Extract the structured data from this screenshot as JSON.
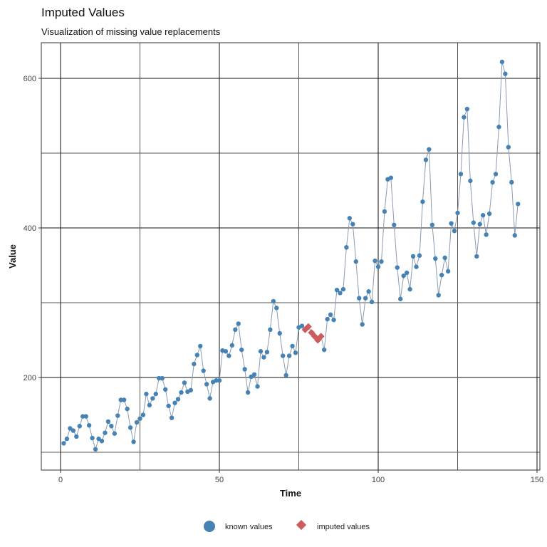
{
  "title": "Imputed Values",
  "subtitle": "Visualization of missing value replacements",
  "legend": {
    "known_label": "known values",
    "imputed_label": "imputed values"
  },
  "colors": {
    "known": "#4682B4",
    "imputed": "#CD5C5C",
    "line": "#8a9bb0"
  },
  "chart_data": {
    "type": "line",
    "title": "Imputed Values",
    "subtitle": "Visualization of missing value replacements",
    "xlabel": "Time",
    "ylabel": "Value",
    "xlim": [
      -6,
      151
    ],
    "ylim": [
      76,
      648
    ],
    "xticks": [
      0,
      50,
      100,
      150
    ],
    "yticks": [
      200,
      400,
      600
    ],
    "grid": true,
    "legend_position": "bottom",
    "series": [
      {
        "name": "known values",
        "marker": "circle",
        "x": [
          1,
          2,
          3,
          4,
          5,
          6,
          7,
          8,
          9,
          10,
          11,
          12,
          13,
          14,
          15,
          16,
          17,
          18,
          19,
          20,
          21,
          22,
          23,
          24,
          25,
          26,
          27,
          28,
          29,
          30,
          31,
          32,
          33,
          34,
          35,
          36,
          37,
          38,
          39,
          40,
          41,
          42,
          43,
          44,
          45,
          46,
          47,
          48,
          49,
          50,
          51,
          52,
          53,
          54,
          55,
          56,
          57,
          58,
          59,
          60,
          61,
          62,
          63,
          64,
          65,
          66,
          67,
          68,
          69,
          70,
          71,
          72,
          73,
          74,
          75,
          76,
          83,
          84,
          85,
          86,
          87,
          88,
          89,
          90,
          91,
          92,
          93,
          94,
          95,
          96,
          97,
          98,
          99,
          100,
          101,
          102,
          103,
          104,
          105,
          106,
          107,
          108,
          109,
          110,
          111,
          112,
          113,
          114,
          115,
          116,
          117,
          118,
          119,
          120,
          121,
          122,
          123,
          124,
          125,
          126,
          127,
          128,
          129,
          130,
          131,
          132,
          133,
          134,
          135,
          136,
          137,
          138,
          139,
          140,
          141,
          142,
          143,
          144
        ],
        "values": [
          112,
          118,
          132,
          129,
          121,
          135,
          148,
          148,
          136,
          119,
          104,
          118,
          115,
          126,
          141,
          135,
          125,
          149,
          170,
          170,
          158,
          133,
          114,
          140,
          145,
          150,
          178,
          163,
          172,
          178,
          199,
          199,
          184,
          162,
          146,
          166,
          171,
          180,
          193,
          181,
          183,
          218,
          230,
          242,
          209,
          191,
          172,
          194,
          196,
          196,
          236,
          235,
          229,
          243,
          264,
          272,
          237,
          211,
          180,
          201,
          204,
          188,
          235,
          227,
          234,
          264,
          302,
          293,
          259,
          229,
          203,
          229,
          242,
          233,
          267,
          269,
          237,
          278,
          284,
          277,
          317,
          313,
          318,
          374,
          413,
          405,
          355,
          306,
          271,
          306,
          315,
          301,
          356,
          348,
          355,
          422,
          465,
          467,
          404,
          347,
          305,
          336,
          340,
          318,
          362,
          348,
          363,
          435,
          491,
          505,
          404,
          359,
          310,
          337,
          360,
          342,
          406,
          396,
          420,
          472,
          548,
          559,
          463,
          407,
          362,
          405,
          417,
          391,
          419,
          461,
          472,
          535,
          622,
          606,
          508,
          461,
          390,
          432
        ]
      },
      {
        "name": "imputed values",
        "marker": "diamond",
        "x": [
          77,
          78,
          79,
          80,
          81,
          82
        ],
        "values": [
          264,
          268,
          260,
          255,
          250,
          255
        ]
      }
    ]
  },
  "axes": {
    "xlabel": "Time",
    "ylabel": "Value",
    "xticks": [
      "0",
      "50",
      "100",
      "150"
    ],
    "yticks": [
      "200",
      "400",
      "600"
    ]
  }
}
